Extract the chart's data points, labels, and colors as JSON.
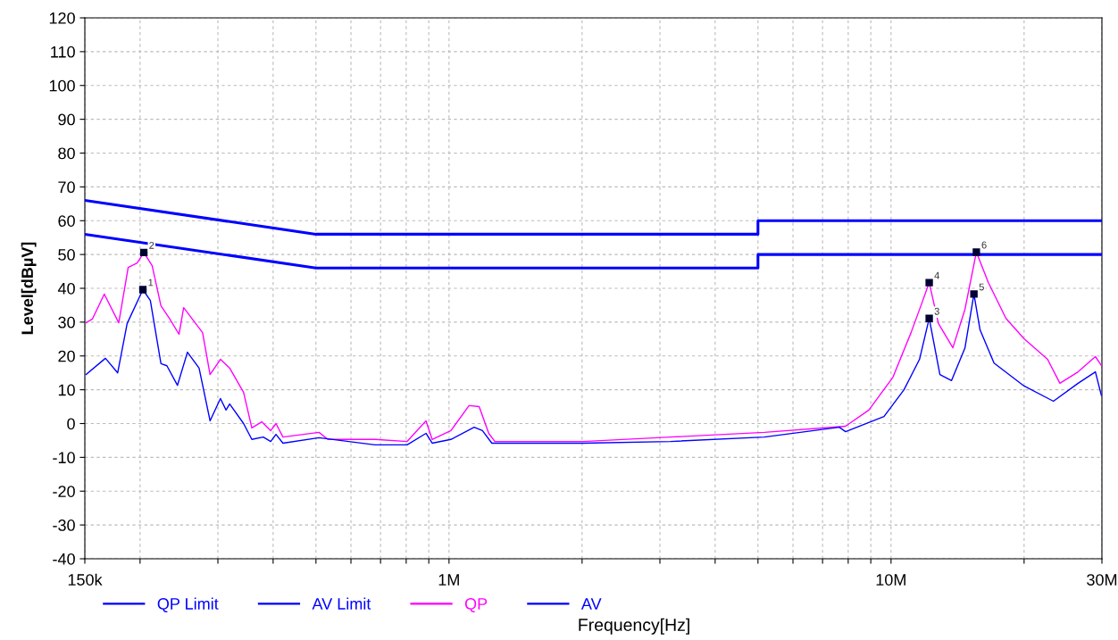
{
  "chart_data": {
    "type": "line",
    "xlabel": "Frequency[Hz]",
    "ylabel": "Level[dBµV]",
    "log": "x",
    "grid": true,
    "legend": "bottom",
    "marker": "none",
    "line_style": "solid",
    "xlim": [
      150000,
      30000000
    ],
    "ylim": [
      -40,
      120
    ],
    "xticks": [
      {
        "value": 150000,
        "label": "150k"
      },
      {
        "value": 200000,
        "label": null
      },
      {
        "value": 300000,
        "label": null
      },
      {
        "value": 400000,
        "label": null
      },
      {
        "value": 500000,
        "label": null
      },
      {
        "value": 600000,
        "label": null
      },
      {
        "value": 700000,
        "label": null
      },
      {
        "value": 800000,
        "label": null
      },
      {
        "value": 900000,
        "label": null
      },
      {
        "value": 1000000,
        "label": "1M"
      },
      {
        "value": 2000000,
        "label": null
      },
      {
        "value": 3000000,
        "label": null
      },
      {
        "value": 4000000,
        "label": null
      },
      {
        "value": 5000000,
        "label": null
      },
      {
        "value": 6000000,
        "label": null
      },
      {
        "value": 7000000,
        "label": null
      },
      {
        "value": 8000000,
        "label": null
      },
      {
        "value": 9000000,
        "label": null
      },
      {
        "value": 10000000,
        "label": "10M"
      },
      {
        "value": 20000000,
        "label": null
      },
      {
        "value": 30000000,
        "label": "30M"
      }
    ],
    "yticks": [
      -40,
      -30,
      -20,
      -10,
      0,
      10,
      20,
      30,
      40,
      50,
      60,
      70,
      80,
      90,
      100,
      110,
      120
    ],
    "series": [
      {
        "name": "QP Limit",
        "color": "#0000ff",
        "x": [
          150000,
          500000,
          5000000,
          5000000,
          30000000
        ],
        "values": [
          66,
          56,
          56,
          60,
          60
        ]
      },
      {
        "name": "AV Limit",
        "color": "#0000ff",
        "x": [
          150000,
          500000,
          5000000,
          5000000,
          30000000
        ],
        "values": [
          56,
          46,
          46,
          50,
          50
        ]
      },
      {
        "name": "QP",
        "color": "#ff00ff",
        "x": [
          151000,
          156000,
          166000,
          179000,
          188000,
          197000,
          204000,
          213000,
          223000,
          233000,
          245000,
          251000,
          277000,
          288000,
          304000,
          319000,
          343000,
          358000,
          377000,
          395000,
          406000,
          421000,
          508000,
          532000,
          620000,
          680000,
          804000,
          887000,
          916000,
          1010000,
          1110000,
          1170000,
          1230000,
          1270000,
          2010000,
          3170000,
          5170000,
          7890000,
          8910000,
          10100000,
          11100000,
          11800000,
          12200000,
          12800000,
          13800000,
          14700000,
          15600000,
          16600000,
          18200000,
          20000000,
          22600000,
          24100000,
          26500000,
          29000000,
          29900000
        ],
        "values": [
          29.8,
          30.9,
          38.3,
          29.8,
          46.2,
          47.5,
          50.6,
          46.7,
          34.8,
          31.1,
          26.4,
          34.3,
          26.9,
          14.5,
          19,
          16.4,
          9.2,
          -1.3,
          0.5,
          -2.1,
          0,
          -4,
          -2.6,
          -4.7,
          -4.7,
          -4.7,
          -5.3,
          0.8,
          -4.7,
          -2.1,
          5.3,
          5,
          -2.9,
          -5.3,
          -5.3,
          -4,
          -2.6,
          -0.8,
          4,
          13.7,
          26.9,
          36.4,
          41.7,
          29.6,
          22.4,
          33.8,
          50.7,
          41.7,
          31.1,
          25.1,
          19,
          11.9,
          15.3,
          19.8,
          17.2
        ]
      },
      {
        "name": "AV",
        "color": "#0000ff",
        "x": [
          151000,
          167000,
          178000,
          187000,
          203000,
          211000,
          223000,
          230000,
          243000,
          256000,
          272000,
          288000,
          304000,
          313000,
          319000,
          343000,
          358000,
          380000,
          395000,
          406000,
          421000,
          508000,
          680000,
          804000,
          887000,
          916000,
          1010000,
          1140000,
          1190000,
          1250000,
          2010000,
          3170000,
          5170000,
          7640000,
          7890000,
          9640000,
          10700000,
          11600000,
          12200000,
          12900000,
          13700000,
          14700000,
          15400000,
          15900000,
          17100000,
          20000000,
          23300000,
          26500000,
          29000000,
          29900000
        ],
        "values": [
          14.5,
          19.3,
          15,
          29.6,
          39.6,
          36.4,
          17.7,
          17.1,
          11.3,
          21.1,
          16.4,
          0.8,
          7.4,
          4,
          5.8,
          0,
          -4.7,
          -4,
          -5.3,
          -3.2,
          -5.8,
          -4.2,
          -6.3,
          -6.3,
          -2.9,
          -5.8,
          -4.7,
          -1.1,
          -2.1,
          -5.8,
          -5.8,
          -5.3,
          -4,
          -1.1,
          -2.4,
          2.1,
          10,
          19,
          31.1,
          14.5,
          12.7,
          22.4,
          38.3,
          27.7,
          17.9,
          11.1,
          6.6,
          11.9,
          15.3,
          8.4
        ]
      }
    ],
    "annotations": [
      {
        "text": "1",
        "x": 203000,
        "y": 39.6
      },
      {
        "text": "2",
        "x": 204000,
        "y": 50.6
      },
      {
        "text": "3",
        "x": 12200000,
        "y": 31.1
      },
      {
        "text": "4",
        "x": 12200000,
        "y": 41.7
      },
      {
        "text": "5",
        "x": 15400000,
        "y": 38.3
      },
      {
        "text": "6",
        "x": 15600000,
        "y": 50.7
      }
    ]
  }
}
